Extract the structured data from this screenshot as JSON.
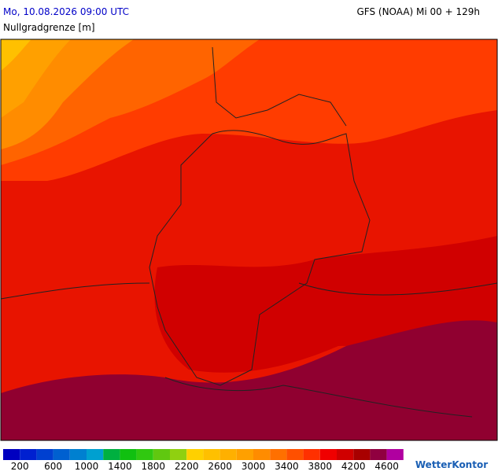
{
  "header": {
    "left": "Mo, 10.08.2026 09:00 UTC",
    "right": "GFS (NOAA) Mi 00 + 129h",
    "subtitle": "Nullgradgrenze [m]"
  },
  "colorbar": {
    "colors": [
      "#0000c0",
      "#0020d0",
      "#0040d0",
      "#0060d0",
      "#0080d0",
      "#00a0d0",
      "#00b040",
      "#10c010",
      "#30c810",
      "#60c810",
      "#90d010",
      "#ffd000",
      "#ffc000",
      "#ffb000",
      "#ffa000",
      "#ff8c00",
      "#ff7000",
      "#ff5000",
      "#ff3000",
      "#f00000",
      "#d00000",
      "#a80000",
      "#900040",
      "#b000a0"
    ],
    "ticks": [
      200,
      600,
      1000,
      1400,
      1800,
      2200,
      2600,
      3000,
      3400,
      3800,
      4200,
      4600
    ]
  },
  "logo": "WetterKontor"
}
